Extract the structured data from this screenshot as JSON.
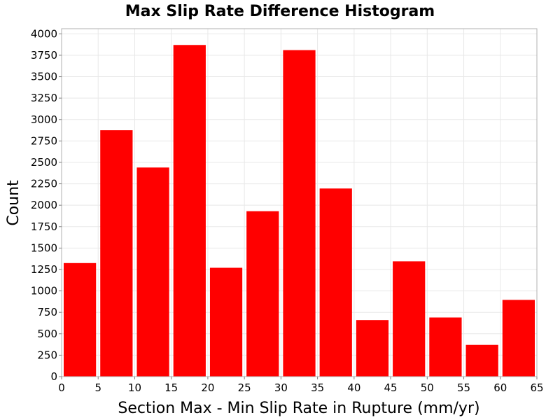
{
  "chart_data": {
    "type": "bar",
    "title": "Max Slip Rate Difference Histogram",
    "xlabel": "Section Max - Min Slip Rate in Rupture (mm/yr)",
    "ylabel": "Count",
    "bin_width": 5,
    "bins": [
      {
        "start": 0,
        "end": 5,
        "value": 1325
      },
      {
        "start": 5,
        "end": 10,
        "value": 2875
      },
      {
        "start": 10,
        "end": 15,
        "value": 2440
      },
      {
        "start": 15,
        "end": 20,
        "value": 3870
      },
      {
        "start": 20,
        "end": 25,
        "value": 1270
      },
      {
        "start": 25,
        "end": 30,
        "value": 1930
      },
      {
        "start": 30,
        "end": 35,
        "value": 3810
      },
      {
        "start": 35,
        "end": 40,
        "value": 2195
      },
      {
        "start": 40,
        "end": 45,
        "value": 660
      },
      {
        "start": 45,
        "end": 50,
        "value": 1345
      },
      {
        "start": 50,
        "end": 55,
        "value": 690
      },
      {
        "start": 55,
        "end": 60,
        "value": 370
      },
      {
        "start": 60,
        "end": 65,
        "value": 895
      }
    ],
    "xlim": [
      0,
      65
    ],
    "ylim": [
      0,
      4060
    ],
    "x_ticks": [
      "0",
      "5",
      "10",
      "15",
      "20",
      "25",
      "30",
      "35",
      "40",
      "45",
      "50",
      "55",
      "60",
      "65"
    ],
    "y_ticks": [
      "0",
      "250",
      "500",
      "750",
      "1000",
      "1250",
      "1500",
      "1750",
      "2000",
      "2250",
      "2500",
      "2750",
      "3000",
      "3250",
      "3500",
      "3750",
      "4000"
    ],
    "bar_color": "#ff0000",
    "grid": true,
    "legend": "none"
  }
}
